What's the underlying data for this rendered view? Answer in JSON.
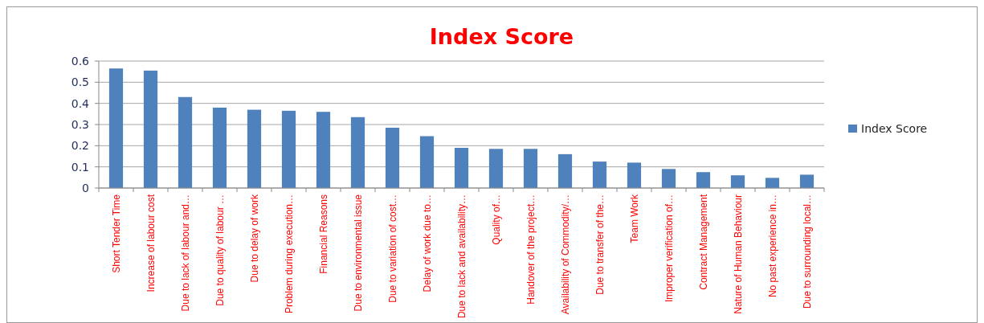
{
  "chart_data": {
    "type": "bar",
    "title": "Index Score",
    "categories": [
      "Short Tender Time",
      "Increase of labour cost",
      "Due to lack of  labour and…",
      "Due to quality of labour …",
      "Due to delay of work",
      "Problem during execution…",
      "Financial Reasons",
      "Due to environmental issue",
      "Due to variation of cost…",
      "Delay of work due to…",
      "Due to lack and availability…",
      "Quality of…",
      "Handover of the project…",
      "Availability of Commodity/…",
      "Due to transfer of the…",
      "Team Work",
      "Improper verification of…",
      "Contract Management",
      "Nature of Human Behaviour",
      "No past experience in…",
      "Due to surrounding local…"
    ],
    "series": [
      {
        "name": "Index Score",
        "color": "#4f81bd",
        "values": [
          0.565,
          0.555,
          0.43,
          0.38,
          0.37,
          0.365,
          0.36,
          0.335,
          0.285,
          0.245,
          0.19,
          0.185,
          0.185,
          0.16,
          0.125,
          0.12,
          0.09,
          0.075,
          0.06,
          0.048,
          0.063
        ]
      }
    ],
    "ylim": [
      0,
      0.6
    ],
    "yticks": [
      {
        "value": 0,
        "label": "0"
      },
      0.1,
      0.2,
      0.3,
      0.4,
      0.5,
      0.6
    ],
    "grid": "y",
    "legend": "right"
  }
}
